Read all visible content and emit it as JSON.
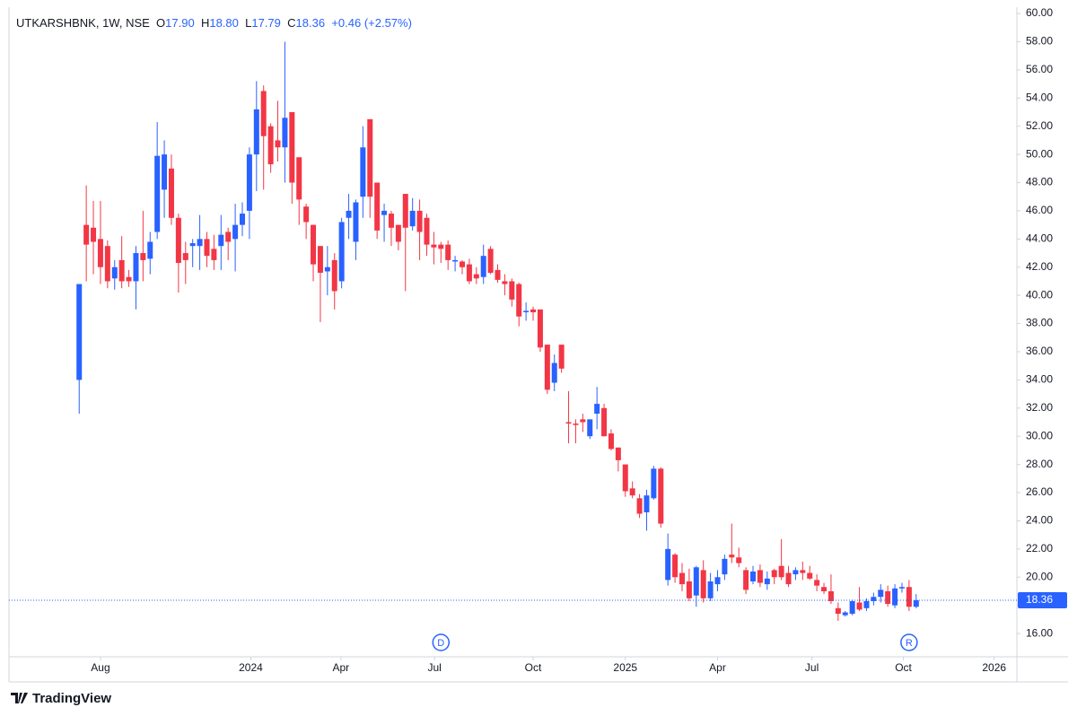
{
  "header": {
    "symbol": "UTKARSHBNK, 1W, NSE",
    "open_label": "O",
    "open": "17.90",
    "high_label": "H",
    "high": "18.80",
    "low_label": "L",
    "low": "17.79",
    "close_label": "C",
    "close": "18.36",
    "change": "+0.46 (+2.57%)"
  },
  "chart_data": {
    "type": "candlestick",
    "categories": [
      null,
      null,
      null,
      null,
      null,
      null,
      null,
      null,
      null,
      null,
      null,
      null,
      null,
      null,
      null,
      null,
      null,
      null,
      null,
      null,
      null,
      null,
      null,
      null,
      null,
      null,
      null,
      null,
      null,
      null,
      null,
      null,
      null,
      null,
      null,
      null,
      null,
      null,
      null,
      null,
      null,
      null,
      null,
      null,
      null,
      null,
      null,
      null,
      null,
      null,
      null,
      null,
      null,
      null,
      null,
      null,
      null,
      null,
      null,
      null,
      null,
      null,
      null,
      null,
      null,
      null,
      null,
      null,
      null,
      null,
      null,
      null,
      null,
      null,
      null,
      null,
      null,
      null,
      null,
      null,
      null,
      null,
      null,
      null,
      null,
      null,
      null,
      null,
      null,
      null,
      null,
      null,
      null,
      null,
      null,
      null,
      null,
      null,
      null,
      null,
      null,
      null,
      null,
      null,
      null,
      null,
      null,
      null,
      null,
      null,
      null,
      null,
      null,
      null,
      null,
      null,
      null,
      null,
      null
    ],
    "open": [
      34,
      45,
      44.8,
      44,
      43.5,
      41.2,
      42.5,
      41.3,
      41,
      43,
      42.6,
      44.5,
      47.5,
      49,
      45.5,
      43,
      43.5,
      43.5,
      44,
      43.3,
      43.5,
      44.5,
      44,
      45,
      46,
      50,
      54.5,
      52,
      51,
      50.5,
      53,
      49.8,
      46.3,
      45,
      43.5,
      41.7,
      42.5,
      41,
      45.5,
      43.8,
      47,
      52.5,
      48,
      45.7,
      45.8,
      45,
      47.2,
      44.9,
      46,
      45.5,
      43.6,
      43.6,
      43.6,
      42.4,
      42.4,
      42.2,
      41.5,
      41.3,
      43.3,
      41.8,
      41,
      41,
      40.8,
      38.8,
      39,
      39,
      36.5,
      33.8,
      36.5,
      31,
      30.9,
      31.2,
      30,
      31.6,
      32,
      30.2,
      29.2,
      28,
      26.3,
      25.6,
      24.6,
      25.6,
      27.7,
      19.8,
      21.6,
      20.3,
      19.7,
      18.7,
      20.5,
      18.5,
      19.5,
      20.2,
      21.6,
      21.4,
      20.5,
      19.7,
      20.5,
      19.5,
      20.5,
      20.8,
      20.3,
      20.2,
      20.5,
      20.3,
      19.8,
      19.3,
      19,
      17.8,
      17.3,
      17.4,
      18.2,
      17.8,
      18.3,
      18.6,
      19,
      18,
      19.2,
      19.3,
      17.9
    ],
    "high": [
      40.8,
      47.8,
      46.7,
      46.7,
      43.9,
      42.5,
      44.2,
      41.8,
      43.5,
      46,
      44.5,
      52.3,
      51,
      50,
      45.8,
      43.8,
      44,
      45.7,
      44.5,
      44.3,
      45.7,
      44.8,
      46.5,
      46.6,
      50.5,
      55.2,
      54.9,
      52.2,
      53.8,
      58,
      53,
      49.8,
      46.5,
      45,
      43.5,
      43.5,
      43,
      45.5,
      47.2,
      46.8,
      52,
      52.5,
      48,
      46.5,
      46,
      45,
      47.2,
      46.9,
      46.8,
      45.8,
      44.5,
      43.8,
      43.9,
      42.8,
      42.5,
      42.6,
      42,
      43.6,
      43.5,
      42.2,
      41.5,
      41.2,
      40.9,
      39.5,
      39.2,
      39,
      36.5,
      35.8,
      36.5,
      33.2,
      31.2,
      31.6,
      31.2,
      33.5,
      32.3,
      30.5,
      29.2,
      28,
      26.8,
      25.9,
      26.2,
      27.9,
      27.8,
      23.1,
      21.7,
      21,
      20.6,
      20.8,
      21.2,
      20.3,
      20.5,
      21.6,
      23.8,
      22.1,
      20.7,
      20.8,
      20.9,
      20.4,
      20.6,
      22.7,
      20.8,
      20.7,
      21.1,
      20.8,
      20.2,
      19.6,
      20.2,
      18.2,
      17.6,
      18.4,
      19.3,
      18.5,
      18.9,
      19.5,
      19.4,
      19.5,
      19.6,
      19.8,
      18.8
    ],
    "low": [
      31.6,
      41,
      41.5,
      40.8,
      40.5,
      40.4,
      40.5,
      40.6,
      39,
      41,
      41.5,
      44,
      45.5,
      45,
      40.2,
      40.8,
      42,
      41.8,
      42,
      41.8,
      41.8,
      42.5,
      41.7,
      44.2,
      44,
      47.4,
      47.5,
      48.7,
      49.5,
      48,
      46.5,
      45,
      44,
      41,
      38.1,
      40,
      39,
      40.5,
      44,
      42.5,
      45.5,
      45.5,
      44,
      43.8,
      43.5,
      43.2,
      40.3,
      44.6,
      42.5,
      42.8,
      42.2,
      42.3,
      41.8,
      41.7,
      41.5,
      40.8,
      40.8,
      40.8,
      41.5,
      40.9,
      40,
      39.2,
      37.8,
      38.2,
      38.2,
      36,
      33,
      33.2,
      34.5,
      29.5,
      29.5,
      30.3,
      29.8,
      30.5,
      30,
      29,
      27.5,
      25.7,
      25.6,
      24.2,
      23.3,
      25.5,
      23.5,
      19.4,
      19.6,
      19,
      18.3,
      17.9,
      18.2,
      18.3,
      19,
      19.8,
      21,
      20.7,
      18.8,
      19.5,
      19.3,
      19.1,
      19.5,
      19.8,
      19.3,
      19.8,
      19.8,
      19.8,
      19,
      18.8,
      18.1,
      16.9,
      17.2,
      17.3,
      17.6,
      17.6,
      18,
      18.2,
      17.9,
      17.8,
      18.9,
      17.6,
      17.79
    ],
    "close": [
      40.8,
      43.6,
      43.8,
      42,
      41,
      42,
      41,
      41,
      43,
      42.5,
      43.8,
      49.9,
      50,
      45.5,
      42.3,
      42.5,
      43.7,
      44,
      42.8,
      42.5,
      44.3,
      43.8,
      45,
      45.8,
      50,
      53.2,
      51.3,
      49.3,
      50.5,
      52.6,
      48,
      46.8,
      45.2,
      42.2,
      41.6,
      42,
      40.3,
      45.2,
      46,
      46.6,
      50.5,
      47,
      44.6,
      46,
      44.8,
      43.8,
      44.8,
      46,
      44.5,
      43.6,
      43.4,
      43.3,
      42.5,
      42.5,
      42,
      41,
      41.2,
      42.8,
      41.6,
      41.1,
      40.8,
      39.7,
      38.5,
      38.9,
      38.8,
      36.3,
      33.3,
      35.2,
      34.8,
      30.9,
      30.8,
      31,
      31.2,
      32.3,
      30,
      29.1,
      28.3,
      26.1,
      25.8,
      24.5,
      25.8,
      27.7,
      23.8,
      22,
      20,
      19.5,
      18.5,
      20.7,
      18.5,
      19.7,
      20,
      21.3,
      21.4,
      21,
      19.1,
      20.4,
      19.6,
      19.9,
      20,
      20,
      19.5,
      20.5,
      20.3,
      19.9,
      19.4,
      19,
      18.3,
      17.4,
      17.5,
      18.3,
      17.7,
      18.3,
      18.6,
      19.1,
      18.1,
      19.2,
      19.3,
      17.9,
      18.36
    ],
    "up_color": "#2962ff",
    "down_color": "#f23645",
    "ylim": [
      14.35,
      60.45
    ],
    "yticks": [
      {
        "value": 16,
        "label": "16.00"
      },
      {
        "value": 18,
        "label": "18.00"
      },
      {
        "value": 20,
        "label": "20.00"
      },
      {
        "value": 22,
        "label": "22.00"
      },
      {
        "value": 24,
        "label": "24.00"
      },
      {
        "value": 26,
        "label": "26.00"
      },
      {
        "value": 28,
        "label": "28.00"
      },
      {
        "value": 30,
        "label": "30.00"
      },
      {
        "value": 32,
        "label": "32.00"
      },
      {
        "value": 34,
        "label": "34.00"
      },
      {
        "value": 36,
        "label": "36.00"
      },
      {
        "value": 38,
        "label": "38.00"
      },
      {
        "value": 40,
        "label": "40.00"
      },
      {
        "value": 42,
        "label": "42.00"
      },
      {
        "value": 44,
        "label": "44.00"
      },
      {
        "value": 46,
        "label": "46.00"
      },
      {
        "value": 48,
        "label": "48.00"
      },
      {
        "value": 50,
        "label": "50.00"
      },
      {
        "value": 52,
        "label": "52.00"
      },
      {
        "value": 54,
        "label": "54.00"
      },
      {
        "value": 56,
        "label": "56.00"
      },
      {
        "value": 58,
        "label": "58.00"
      },
      {
        "value": 60,
        "label": "60.00"
      }
    ],
    "xlim": [
      -9.9,
      132.2
    ],
    "xticks": [
      {
        "value": 3.0,
        "label": "Aug"
      },
      {
        "value": 24.2,
        "label": "2024"
      },
      {
        "value": 36.9,
        "label": "Apr"
      },
      {
        "value": 50.1,
        "label": "Jul"
      },
      {
        "value": 64.0,
        "label": "Oct"
      },
      {
        "value": 77.0,
        "label": "2025"
      },
      {
        "value": 90.0,
        "label": "Apr"
      },
      {
        "value": 103.3,
        "label": "Jul"
      },
      {
        "value": 116.2,
        "label": "Oct"
      },
      {
        "value": 129.0,
        "label": "2026"
      }
    ],
    "events": [
      {
        "label": "D",
        "index": 51
      },
      {
        "label": "R",
        "index": 117
      }
    ],
    "grid": false
  },
  "footer": {
    "brand": "TradingView"
  }
}
